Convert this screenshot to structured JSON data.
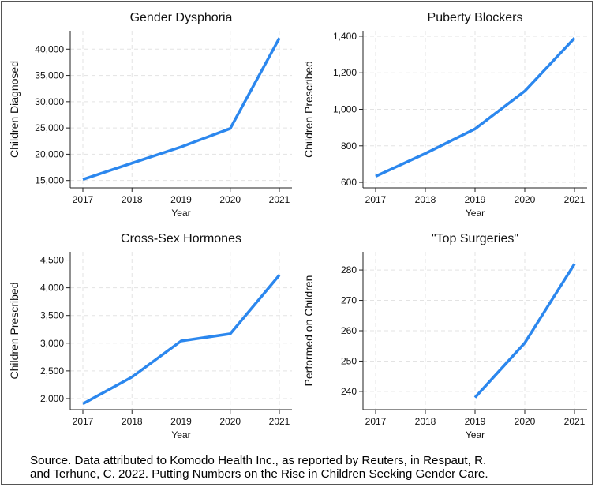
{
  "charts_meta": {
    "line_color": "#2b87ee",
    "grid_color": "#e3e3e3"
  },
  "chart_data": [
    {
      "type": "line",
      "title": "Gender Dysphoria",
      "xlabel": "Year",
      "ylabel": "Children Diagnosed",
      "x": [
        2017,
        2018,
        2019,
        2020,
        2021
      ],
      "y": [
        15200,
        18300,
        21400,
        24900,
        42100
      ],
      "xlim": [
        2017,
        2021
      ],
      "ylim": [
        13600,
        43500
      ],
      "yticks": [
        15000,
        20000,
        25000,
        30000,
        35000,
        40000
      ],
      "ytick_labels": [
        "15,000",
        "20,000",
        "25,000",
        "30,000",
        "35,000",
        "40,000"
      ],
      "grid": true
    },
    {
      "type": "line",
      "title": "Puberty Blockers",
      "xlabel": "Year",
      "ylabel": "Children Prescribed",
      "x": [
        2017,
        2018,
        2019,
        2020,
        2021
      ],
      "y": [
        633,
        758,
        893,
        1100,
        1390
      ],
      "xlim": [
        2017,
        2021
      ],
      "ylim": [
        570,
        1430
      ],
      "yticks": [
        600,
        800,
        1000,
        1200,
        1400
      ],
      "ytick_labels": [
        "600",
        "800",
        "1,000",
        "1,200",
        "1,400"
      ],
      "grid": true
    },
    {
      "type": "line",
      "title": "Cross-Sex Hormones",
      "xlabel": "Year",
      "ylabel": "Children Prescribed",
      "x": [
        2017,
        2018,
        2019,
        2020,
        2021
      ],
      "y": [
        1905,
        2390,
        3040,
        3170,
        4230
      ],
      "xlim": [
        2017,
        2021
      ],
      "ylim": [
        1800,
        4650
      ],
      "yticks": [
        2000,
        2500,
        3000,
        3500,
        4000,
        4500
      ],
      "ytick_labels": [
        "2,000",
        "2,500",
        "3,000",
        "3,500",
        "4,000",
        "4,500"
      ],
      "grid": true
    },
    {
      "type": "line",
      "title": "\"Top Surgeries\"",
      "xlabel": "Year",
      "ylabel": "Performed on Children",
      "x": [
        2019,
        2020,
        2021
      ],
      "y": [
        238,
        256,
        282
      ],
      "xlim": [
        2017,
        2021
      ],
      "ylim": [
        234,
        286
      ],
      "yticks": [
        240,
        250,
        260,
        270,
        280
      ],
      "ytick_labels": [
        "240",
        "250",
        "260",
        "270",
        "280"
      ],
      "grid": true
    }
  ],
  "source": {
    "line1": "Source. Data attributed to Komodo Health Inc., as reported by Reuters, in Respaut, R.",
    "line2": "and Terhune, C. 2022. Putting Numbers on the Rise in Children Seeking Gender Care."
  }
}
